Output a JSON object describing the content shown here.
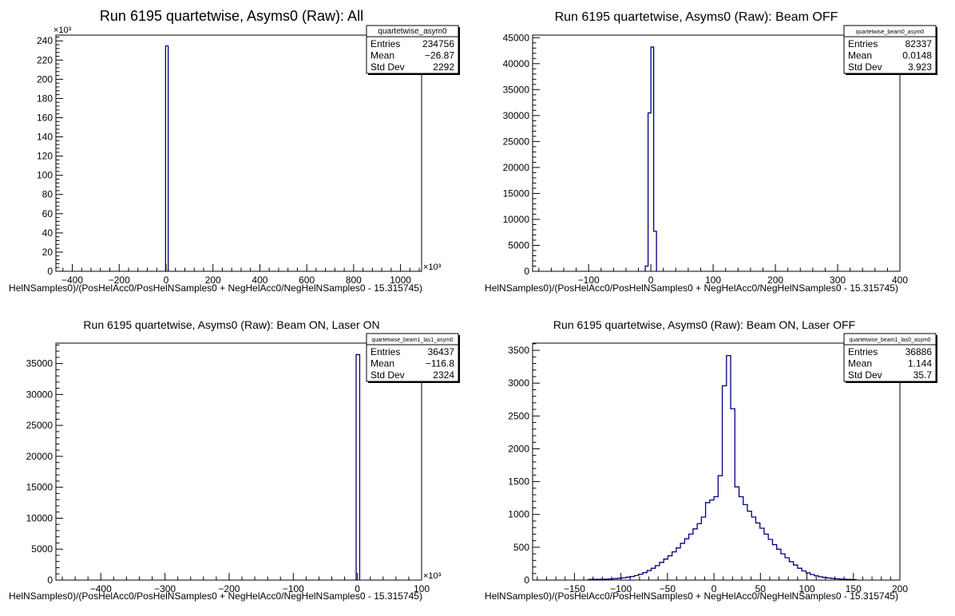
{
  "colors": {
    "histogram_line": "#000080",
    "axis": "#000000",
    "background": "#ffffff"
  },
  "chart_data": [
    {
      "type": "bar",
      "title": "Run 6195 quartetwise, Asyms0 (Raw): All",
      "xlabel": "HelNSamples0)/(PosHelAcc0/PosHelNSamples0 + NegHelAcc0/NegHelNSamples0 - 15.315745)",
      "ylabel": "",
      "xlim": [
        -470,
        1090
      ],
      "ylim": [
        0,
        246
      ],
      "x_exponent_label": "×10³",
      "y_exponent_label": "×10³",
      "xticks": [
        -400,
        -200,
        0,
        200,
        400,
        600,
        800,
        1000
      ],
      "yticks": [
        0,
        20,
        40,
        60,
        80,
        100,
        120,
        140,
        160,
        180,
        200,
        220,
        240
      ],
      "bin_width": 11,
      "bins": [
        {
          "x": -2,
          "y": 234.756
        }
      ],
      "stats": {
        "name": "quartetwise_asym0",
        "entries_label": "Entries",
        "entries": "234756",
        "mean_label": "Mean",
        "mean": "−26.87",
        "std_label": "Std Dev",
        "std": "2292"
      }
    },
    {
      "type": "bar",
      "title": "Run 6195 quartetwise, Asyms0 (Raw): Beam OFF",
      "xlabel": "HelNSamples0)/(PosHelAcc0/PosHelNSamples0 + NegHelAcc0/NegHelNSamples0 - 15.315745)",
      "ylabel": "",
      "xlim": [
        -190,
        400
      ],
      "ylim": [
        0,
        45500
      ],
      "xticks": [
        -100,
        0,
        100,
        200,
        300,
        400
      ],
      "yticks": [
        0,
        5000,
        10000,
        15000,
        20000,
        25000,
        30000,
        35000,
        40000,
        45000
      ],
      "bin_width": 4.5,
      "bins": [
        {
          "x": -9,
          "y": 1000
        },
        {
          "x": -4.5,
          "y": 30500
        },
        {
          "x": 0,
          "y": 43200
        },
        {
          "x": 4.5,
          "y": 7700
        }
      ],
      "stats": {
        "name": "quartetwise_beam0_asym0",
        "entries_label": "Entries",
        "entries": "82337",
        "mean_label": "Mean",
        "mean": "0.0148",
        "std_label": "Std Dev",
        "std": "3.923"
      }
    },
    {
      "type": "bar",
      "title": "Run 6195 quartetwise, Asyms0 (Raw): Beam ON, Laser ON",
      "xlabel": "HelNSamples0)/(PosHelAcc0/PosHelNSamples0 + NegHelAcc0/NegHelNSamples0 - 15.315745)",
      "ylabel": "",
      "xlim": [
        -470,
        100
      ],
      "ylim": [
        0,
        38300
      ],
      "x_exponent_label": "×10³",
      "xticks": [
        -400,
        -300,
        -200,
        -100,
        0,
        100
      ],
      "yticks": [
        0,
        5000,
        10000,
        15000,
        20000,
        25000,
        30000,
        35000
      ],
      "bin_width": 5.5,
      "bins": [
        {
          "x": -2,
          "y": 36437
        }
      ],
      "stats": {
        "name": "quartetwise_beam1_las1_asym0",
        "entries_label": "Entries",
        "entries": "36437",
        "mean_label": "Mean",
        "mean": "−116.8",
        "std_label": "Std Dev",
        "std": "2324"
      }
    },
    {
      "type": "bar",
      "title": "Run 6195 quartetwise, Asyms0 (Raw): Beam ON, Laser OFF",
      "xlabel": "HelNSamples0)/(PosHelAcc0/PosHelNSamples0 + NegHelAcc0/NegHelNSamples0 - 15.315745)",
      "ylabel": "",
      "xlim": [
        -195,
        200
      ],
      "ylim": [
        0,
        3610
      ],
      "xticks": [
        -150,
        -100,
        -50,
        0,
        50,
        100,
        150,
        200
      ],
      "yticks": [
        0,
        500,
        1000,
        1500,
        2000,
        2500,
        3000,
        3500
      ],
      "bin_width": 4.5,
      "bins": [
        {
          "x": -135,
          "y": 10
        },
        {
          "x": -130.5,
          "y": 12
        },
        {
          "x": -126,
          "y": 12
        },
        {
          "x": -121.5,
          "y": 14
        },
        {
          "x": -117,
          "y": 15
        },
        {
          "x": -112.5,
          "y": 18
        },
        {
          "x": -108,
          "y": 22
        },
        {
          "x": -103.5,
          "y": 28
        },
        {
          "x": -99,
          "y": 35
        },
        {
          "x": -94.5,
          "y": 45
        },
        {
          "x": -90,
          "y": 55
        },
        {
          "x": -85.5,
          "y": 70
        },
        {
          "x": -81,
          "y": 90
        },
        {
          "x": -76.5,
          "y": 115
        },
        {
          "x": -72,
          "y": 145
        },
        {
          "x": -67.5,
          "y": 180
        },
        {
          "x": -63,
          "y": 220
        },
        {
          "x": -58.5,
          "y": 270
        },
        {
          "x": -54,
          "y": 320
        },
        {
          "x": -49.5,
          "y": 370
        },
        {
          "x": -45,
          "y": 430
        },
        {
          "x": -40.5,
          "y": 490
        },
        {
          "x": -36,
          "y": 560
        },
        {
          "x": -31.5,
          "y": 630
        },
        {
          "x": -27,
          "y": 700
        },
        {
          "x": -22.5,
          "y": 780
        },
        {
          "x": -18,
          "y": 860
        },
        {
          "x": -13.5,
          "y": 960
        },
        {
          "x": -9,
          "y": 1180
        },
        {
          "x": -4.5,
          "y": 1220
        },
        {
          "x": 0,
          "y": 1270
        },
        {
          "x": 4.5,
          "y": 1590
        },
        {
          "x": 9,
          "y": 2960
        },
        {
          "x": 13.5,
          "y": 3420
        },
        {
          "x": 18,
          "y": 2610
        },
        {
          "x": 22.5,
          "y": 1420
        },
        {
          "x": 27,
          "y": 1270
        },
        {
          "x": 31.5,
          "y": 1150
        },
        {
          "x": 36,
          "y": 1050
        },
        {
          "x": 40.5,
          "y": 960
        },
        {
          "x": 45,
          "y": 870
        },
        {
          "x": 49.5,
          "y": 790
        },
        {
          "x": 54,
          "y": 700
        },
        {
          "x": 58.5,
          "y": 620
        },
        {
          "x": 63,
          "y": 540
        },
        {
          "x": 67.5,
          "y": 470
        },
        {
          "x": 72,
          "y": 400
        },
        {
          "x": 76.5,
          "y": 340
        },
        {
          "x": 81,
          "y": 280
        },
        {
          "x": 85.5,
          "y": 230
        },
        {
          "x": 90,
          "y": 180
        },
        {
          "x": 94.5,
          "y": 140
        },
        {
          "x": 99,
          "y": 110
        },
        {
          "x": 103.5,
          "y": 85
        },
        {
          "x": 108,
          "y": 65
        },
        {
          "x": 112.5,
          "y": 50
        },
        {
          "x": 117,
          "y": 40
        },
        {
          "x": 121.5,
          "y": 32
        },
        {
          "x": 126,
          "y": 25
        },
        {
          "x": 130.5,
          "y": 20
        },
        {
          "x": 135,
          "y": 15
        },
        {
          "x": 139.5,
          "y": 12
        },
        {
          "x": 144,
          "y": 10
        },
        {
          "x": 148.5,
          "y": 8
        }
      ],
      "stats": {
        "name": "quartetwise_beam1_las0_asym0",
        "entries_label": "Entries",
        "entries": "36886",
        "mean_label": "Mean",
        "mean": "1.144",
        "std_label": "Std Dev",
        "std": "35.7"
      }
    }
  ]
}
